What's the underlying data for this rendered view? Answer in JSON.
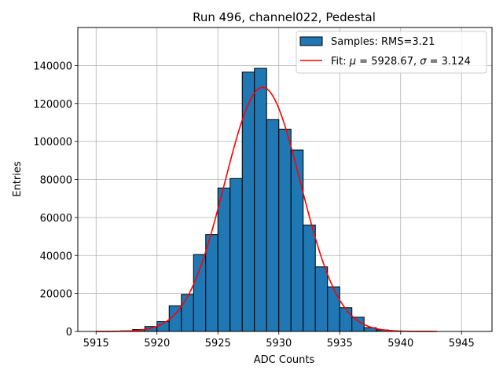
{
  "chart_data": {
    "type": "bar",
    "title": "Run 496, channel022, Pedestal",
    "xlabel": "ADC Counts",
    "ylabel": "Entries",
    "xlim": [
      5913.5,
      5947.5
    ],
    "ylim": [
      0,
      160000
    ],
    "xticks": [
      5915,
      5920,
      5925,
      5930,
      5935,
      5940,
      5945
    ],
    "yticks": [
      0,
      20000,
      40000,
      60000,
      80000,
      100000,
      120000,
      140000
    ],
    "grid": true,
    "legend_position": "top-right",
    "colors": {
      "bars": "#1f77b4",
      "bar_edge": "#000000",
      "fit": "#ff0000",
      "grid": "#b0b0b0"
    },
    "histogram": {
      "name": "Samples: RMS=3.21",
      "bin_edges": [
        5915,
        5916,
        5917,
        5918,
        5919,
        5920,
        5921,
        5922,
        5923,
        5924,
        5925,
        5926,
        5927,
        5928,
        5929,
        5930,
        5931,
        5932,
        5933,
        5934,
        5935,
        5936,
        5937,
        5938,
        5939,
        5940,
        5941,
        5942,
        5943
      ],
      "counts": [
        0,
        100,
        300,
        1000,
        2600,
        5200,
        13500,
        19500,
        40500,
        51000,
        75500,
        80500,
        136500,
        138500,
        111500,
        106500,
        95500,
        56000,
        34000,
        23500,
        12500,
        7500,
        2000,
        800,
        200,
        50,
        0,
        0
      ]
    },
    "fit": {
      "name": "Fit: μ = 5928.67, σ = 3.124",
      "type": "gaussian",
      "mu": 5928.67,
      "sigma": 3.124,
      "amplitude": 128500,
      "x_range": [
        5915,
        5943
      ]
    },
    "legend": [
      {
        "label_prefix": "Samples: RMS=3.21",
        "kind": "patch"
      },
      {
        "label_prefix": "Fit: ",
        "mu_symbol": "μ",
        "mu_text": " = 5928.67, ",
        "sigma_symbol": "σ",
        "sigma_text": " = 3.124",
        "kind": "line"
      }
    ]
  }
}
